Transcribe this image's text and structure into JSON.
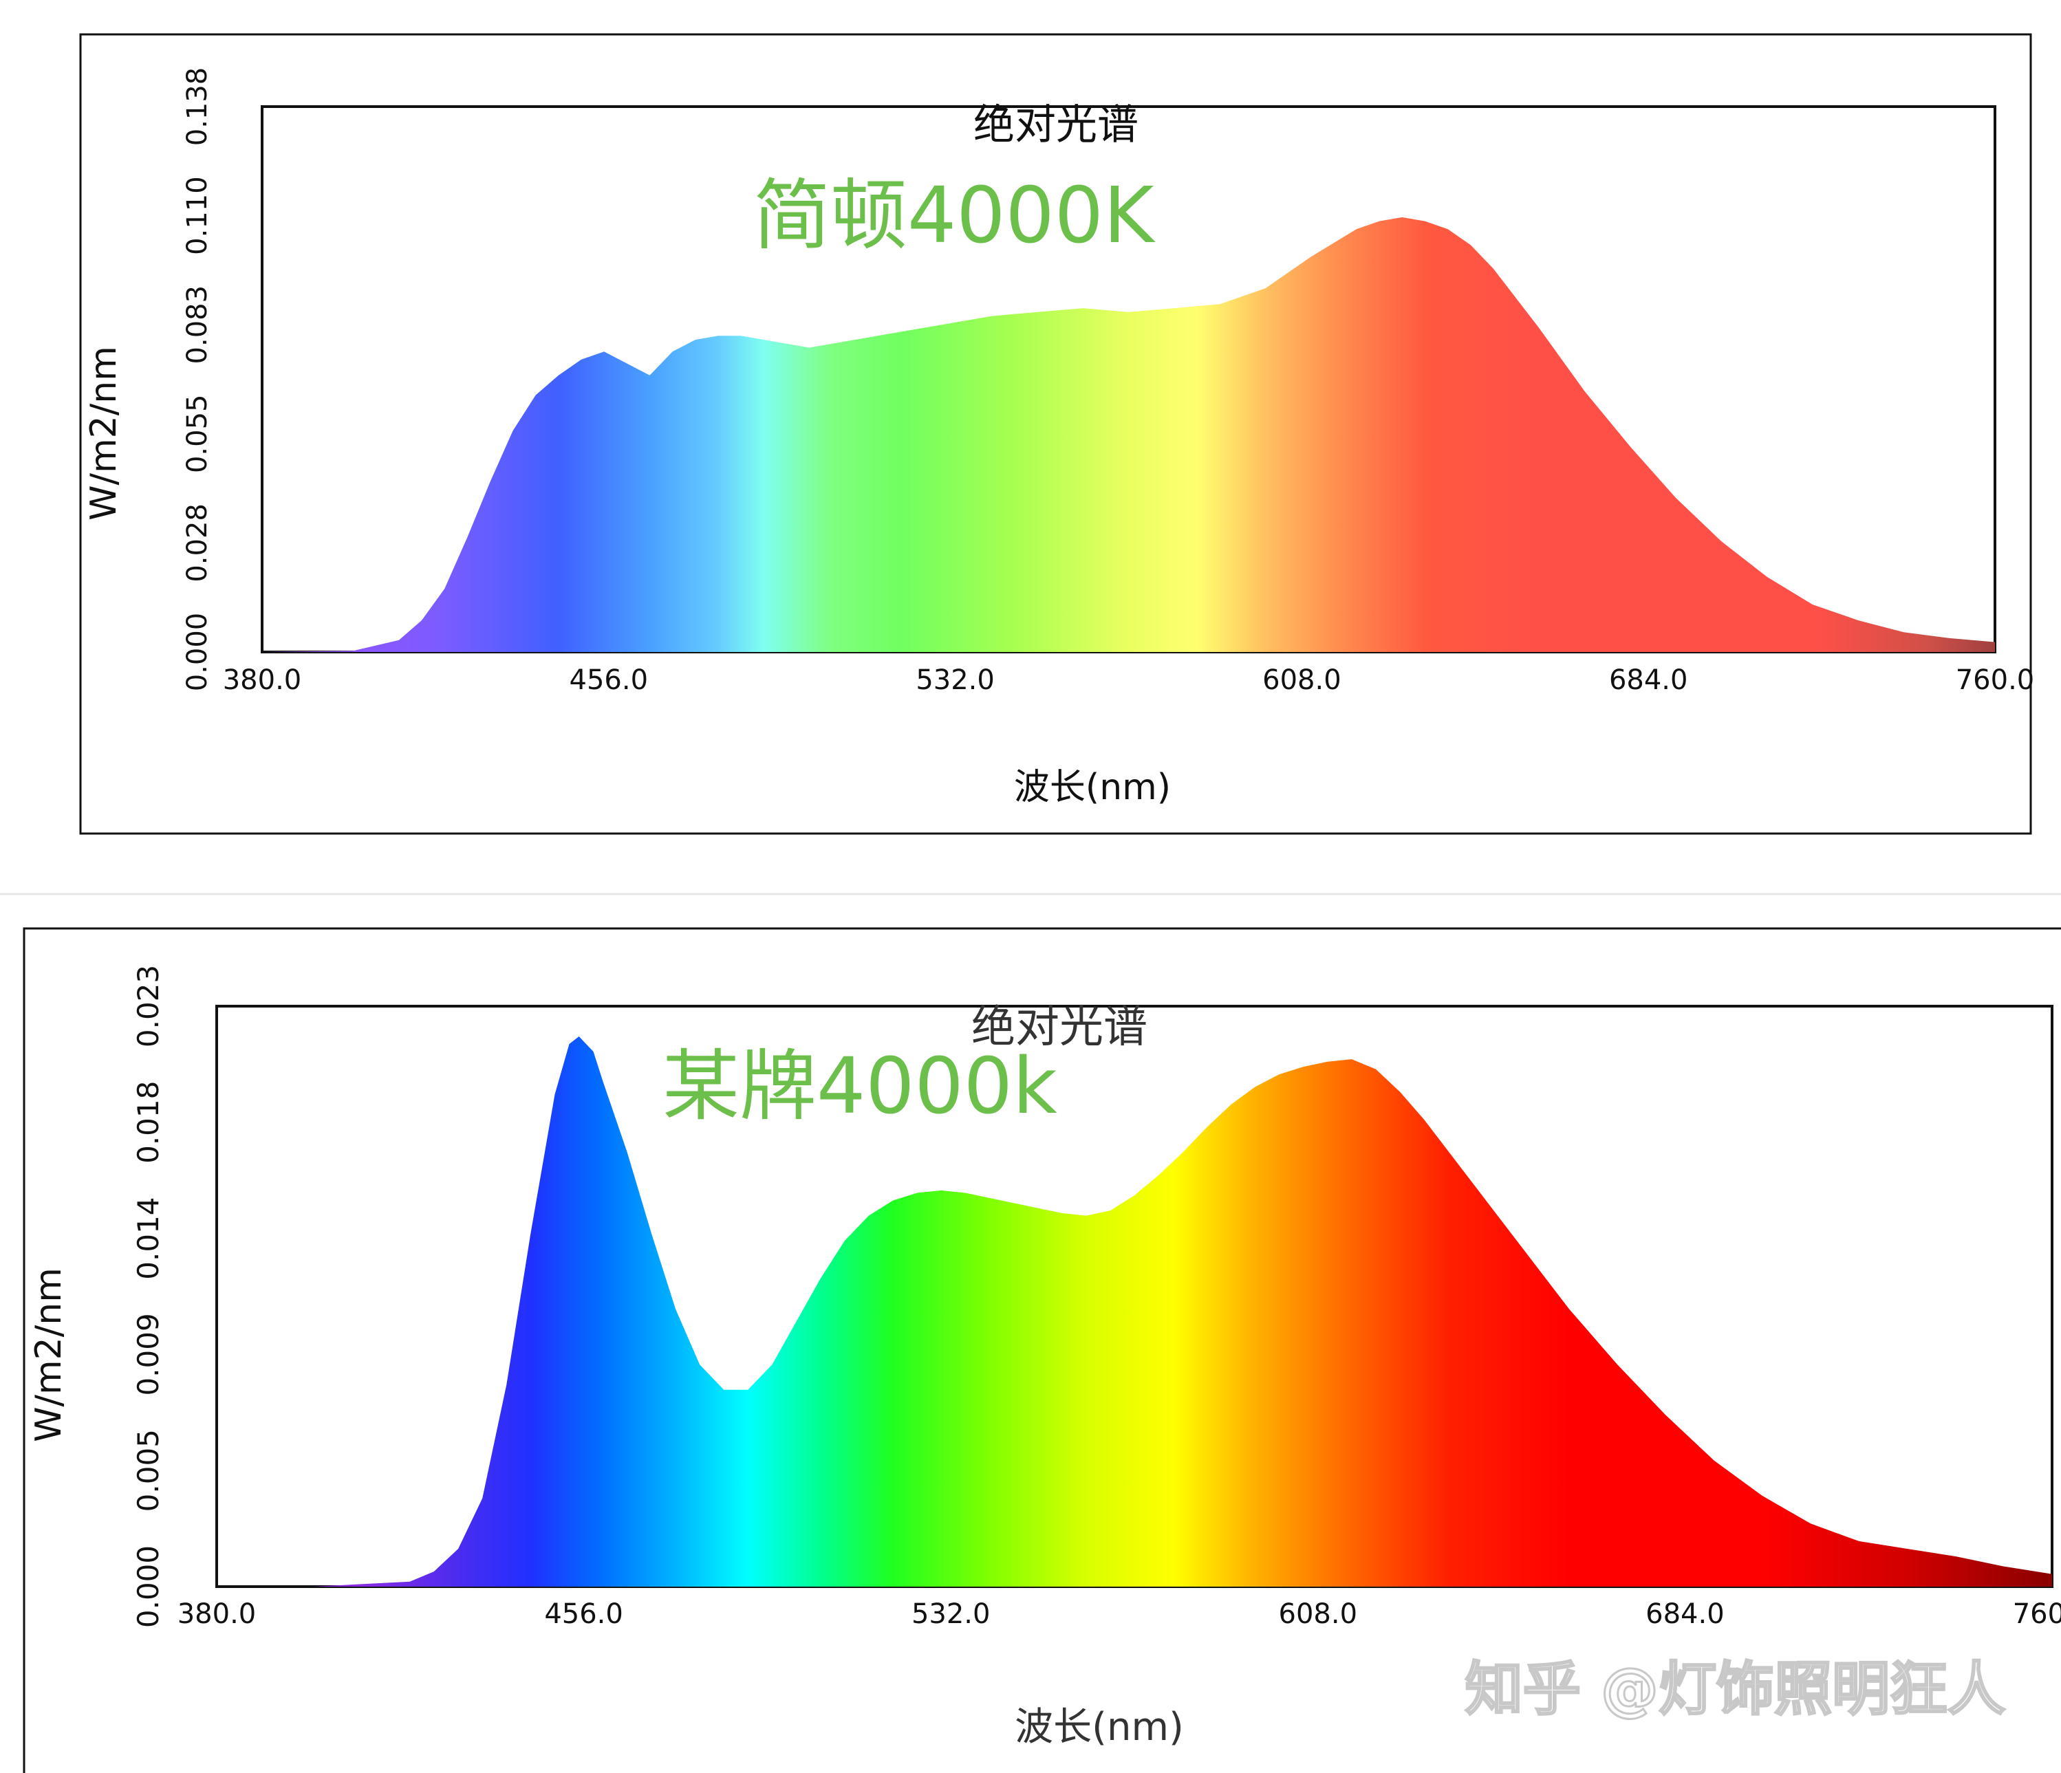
{
  "charts": [
    {
      "frame_title": "绝对光谱",
      "brand_label": "简顿4000K",
      "ylabel": "W/m2/nm",
      "xlabel": "波长(nm)",
      "brand_color": "#6cbf4a"
    },
    {
      "frame_title": "绝对光谱",
      "brand_label": "某牌4000k",
      "ylabel": "W/m2/nm",
      "xlabel": "波长(nm)",
      "brand_color": "#6cbf4a"
    }
  ],
  "watermark": "知乎 @灯饰照明狂人",
  "chart_data": [
    {
      "type": "area",
      "series": [
        {
          "x": [
            380,
            400,
            410,
            415,
            420,
            425,
            430,
            435,
            440,
            445,
            450,
            455,
            460,
            465,
            470,
            475,
            480,
            485,
            490,
            495,
            500,
            505,
            510,
            520,
            530,
            540,
            550,
            560,
            570,
            580,
            590,
            600,
            610,
            620,
            625,
            630,
            635,
            640,
            645,
            650,
            660,
            670,
            680,
            690,
            700,
            710,
            720,
            730,
            740,
            750,
            760
          ],
          "y": [
            0,
            0.0003,
            0.003,
            0.008,
            0.016,
            0.029,
            0.043,
            0.056,
            0.065,
            0.07,
            0.074,
            0.076,
            0.073,
            0.07,
            0.076,
            0.079,
            0.08,
            0.08,
            0.079,
            0.078,
            0.077,
            0.078,
            0.079,
            0.081,
            0.083,
            0.085,
            0.086,
            0.087,
            0.086,
            0.087,
            0.088,
            0.092,
            0.1,
            0.107,
            0.109,
            0.11,
            0.109,
            0.107,
            0.103,
            0.097,
            0.082,
            0.066,
            0.052,
            0.039,
            0.028,
            0.019,
            0.012,
            0.008,
            0.005,
            0.0035,
            0.0025
          ]
        }
      ],
      "xlim": [
        380,
        760
      ],
      "ylim": [
        0,
        0.138
      ],
      "xticks": [
        "380.0",
        "456.0",
        "532.0",
        "608.0",
        "684.0",
        "760.0"
      ],
      "yticks": [
        "0.000",
        "0.028",
        "0.055",
        "0.083",
        "0.110",
        "0.138"
      ],
      "grid": false
    },
    {
      "type": "area",
      "series": [
        {
          "x": [
            380,
            400,
            420,
            425,
            430,
            435,
            440,
            445,
            450,
            453,
            455,
            458,
            460,
            465,
            470,
            475,
            480,
            485,
            490,
            495,
            500,
            505,
            510,
            515,
            520,
            525,
            530,
            535,
            540,
            545,
            550,
            555,
            560,
            565,
            570,
            575,
            580,
            585,
            590,
            595,
            600,
            605,
            610,
            615,
            620,
            625,
            630,
            640,
            650,
            660,
            670,
            680,
            690,
            700,
            710,
            720,
            730,
            740,
            750,
            760
          ],
          "y": [
            0,
            0,
            0.0002,
            0.0006,
            0.0015,
            0.0035,
            0.008,
            0.014,
            0.0195,
            0.0215,
            0.0218,
            0.0212,
            0.02,
            0.0172,
            0.014,
            0.011,
            0.0088,
            0.0078,
            0.0078,
            0.0088,
            0.0105,
            0.0122,
            0.0137,
            0.0147,
            0.0153,
            0.0156,
            0.0157,
            0.0156,
            0.0154,
            0.0152,
            0.015,
            0.0148,
            0.0147,
            0.0149,
            0.0155,
            0.0163,
            0.0172,
            0.0182,
            0.0191,
            0.0198,
            0.0203,
            0.0206,
            0.0208,
            0.0209,
            0.0205,
            0.0196,
            0.0185,
            0.016,
            0.0135,
            0.011,
            0.0088,
            0.0068,
            0.005,
            0.0036,
            0.0025,
            0.0018,
            0.0015,
            0.0012,
            0.0008,
            0.0005
          ]
        }
      ],
      "xlim": [
        380,
        760
      ],
      "ylim": [
        0,
        0.023
      ],
      "xticks": [
        "380.0",
        "456.0",
        "532.0",
        "608.0",
        "684.0",
        "760.0"
      ],
      "yticks": [
        "0.000",
        "0.005",
        "0.009",
        "0.014",
        "0.018",
        "0.023"
      ],
      "grid": false
    }
  ]
}
